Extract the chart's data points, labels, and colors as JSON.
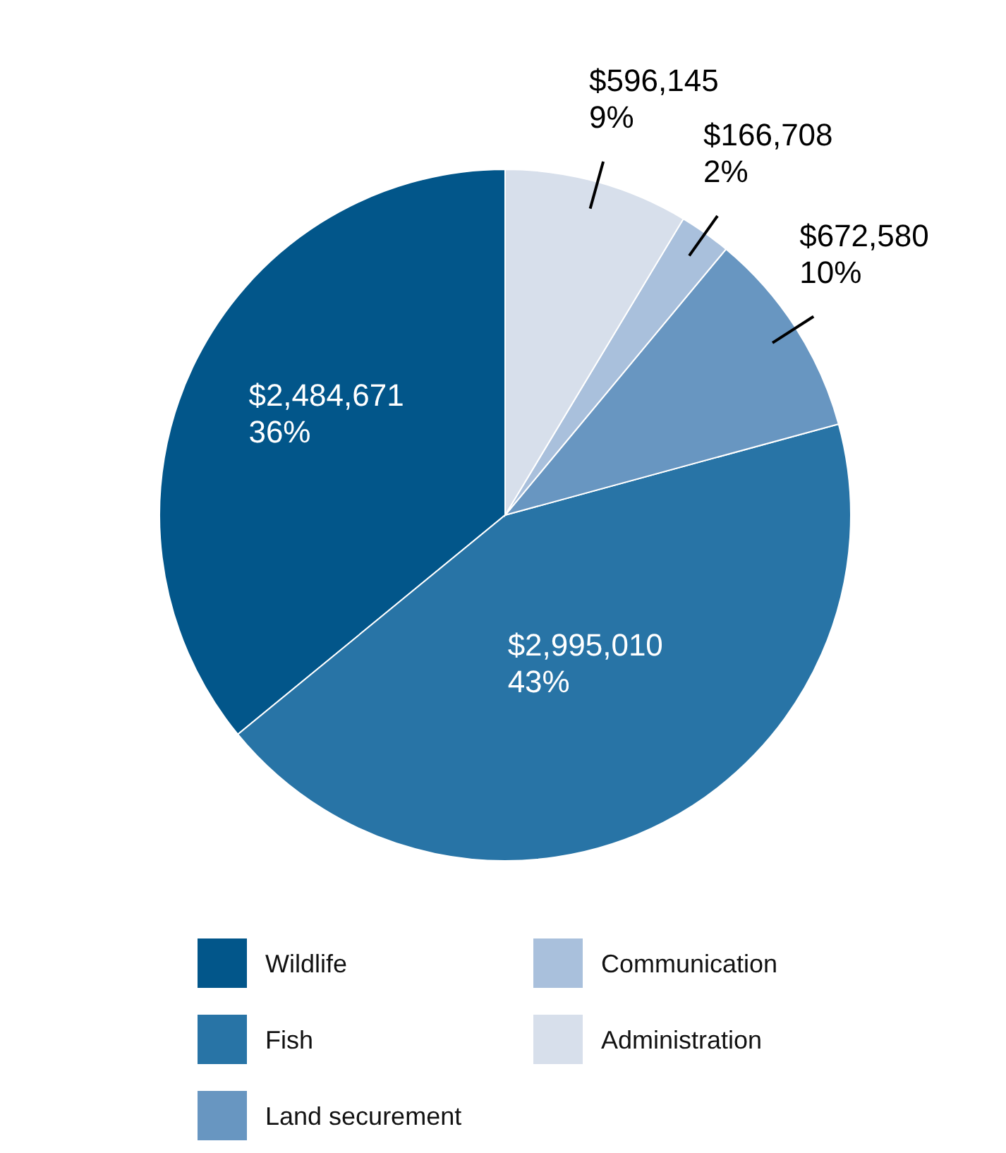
{
  "chart_data": {
    "type": "pie",
    "categories": [
      "Wildlife",
      "Fish",
      "Land securement",
      "Communication",
      "Administration"
    ],
    "values": [
      2484671,
      2995010,
      672580,
      166708,
      596145
    ],
    "value_labels": [
      "$2,484,671\n36%",
      "$2,995,010\n43%",
      "$672,580\n10%",
      "$166,708\n2%",
      "$596,145\n9%"
    ],
    "colors": [
      "#02568a",
      "#2874a6",
      "#6896c1",
      "#a9c0dc",
      "#d7dfeb"
    ],
    "legend": "bottom"
  }
}
